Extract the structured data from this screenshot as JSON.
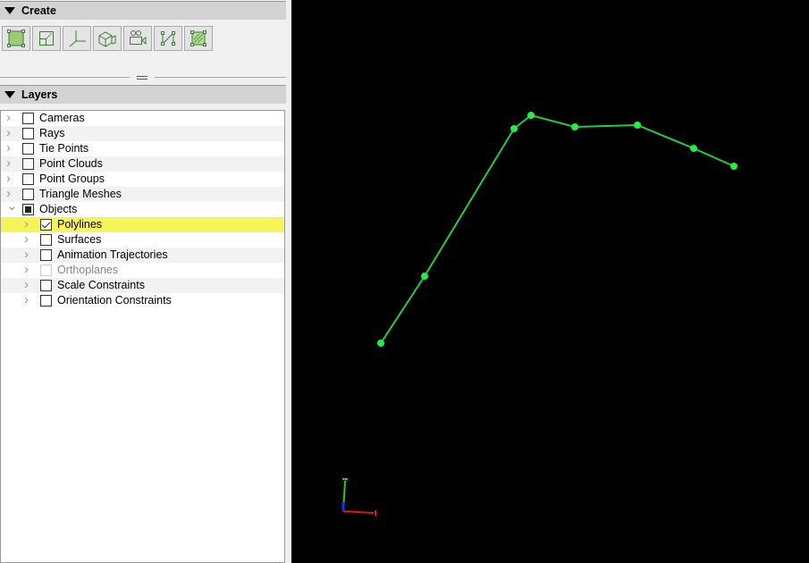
{
  "create_panel": {
    "title": "Create",
    "tools": [
      {
        "icon": "rectangle-fill-icon",
        "tooltip_name": "create-rectangle"
      },
      {
        "icon": "scale-box-icon"
      },
      {
        "icon": "axes-icon"
      },
      {
        "icon": "box-camera-icon"
      },
      {
        "icon": "video-camera-icon"
      },
      {
        "icon": "polyline-icon"
      },
      {
        "icon": "hatched-surface-icon"
      }
    ]
  },
  "layers_panel": {
    "title": "Layers",
    "items": [
      {
        "label": "Cameras",
        "level": 0,
        "expanded": false,
        "check": "unchecked"
      },
      {
        "label": "Rays",
        "level": 0,
        "expanded": false,
        "check": "unchecked"
      },
      {
        "label": "Tie Points",
        "level": 0,
        "expanded": false,
        "check": "unchecked"
      },
      {
        "label": "Point Clouds",
        "level": 0,
        "expanded": false,
        "check": "unchecked"
      },
      {
        "label": "Point Groups",
        "level": 0,
        "expanded": false,
        "check": "unchecked"
      },
      {
        "label": "Triangle Meshes",
        "level": 0,
        "expanded": false,
        "check": "unchecked"
      },
      {
        "label": "Objects",
        "level": 0,
        "expanded": true,
        "check": "partial"
      },
      {
        "label": "Polylines",
        "level": 1,
        "expanded": false,
        "check": "checked",
        "selected": true
      },
      {
        "label": "Surfaces",
        "level": 1,
        "expanded": false,
        "check": "unchecked"
      },
      {
        "label": "Animation Trajectories",
        "level": 1,
        "expanded": false,
        "check": "unchecked"
      },
      {
        "label": "Orthoplanes",
        "level": 1,
        "expanded": false,
        "check": "unchecked",
        "disabled": true
      },
      {
        "label": "Scale Constraints",
        "level": 1,
        "expanded": false,
        "check": "unchecked"
      },
      {
        "label": "Orientation Constraints",
        "level": 1,
        "expanded": false,
        "check": "unchecked"
      }
    ]
  },
  "viewport": {
    "background": "#000000",
    "polyline_color": "#22cc44",
    "vertex_color": "#22ee44",
    "selection_color": "#f5f55a",
    "axis_colors": {
      "x": "#ee1111",
      "y": "#22cc22",
      "z": "#1133ee"
    }
  }
}
